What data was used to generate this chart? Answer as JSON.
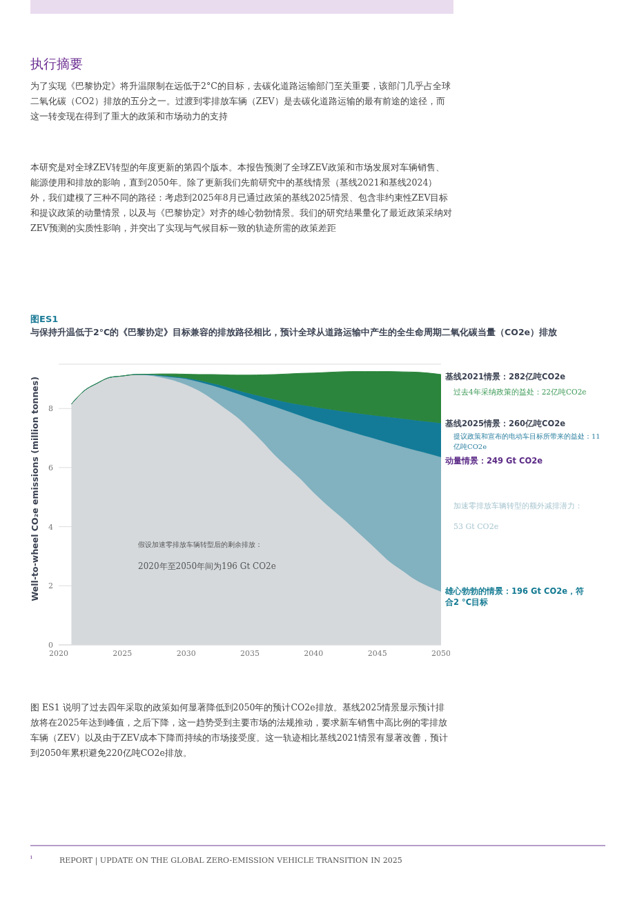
{
  "chart_data": {
    "type": "area",
    "stacked": true,
    "title": "图ES1",
    "subtitle": "与保持升温低于2°C的《巴黎协定》目标兼容的排放路径相比，预计全球从道路运输中产生的全生命周期二氧化碳当量（CO2e）排放",
    "ylabel": "Well-to-wheel CO₂e emissions (million tonnes)",
    "x": [
      2021,
      2022,
      2023,
      2024,
      2025,
      2026,
      2027,
      2028,
      2029,
      2030,
      2031,
      2032,
      2033,
      2034,
      2035,
      2036,
      2037,
      2038,
      2039,
      2040,
      2041,
      2042,
      2043,
      2044,
      2045,
      2046,
      2047,
      2048,
      2049,
      2050
    ],
    "series": [
      {
        "color": "#d5d9dc",
        "values": [
          8.15,
          8.6,
          8.85,
          9.05,
          9.1,
          9.15,
          9.12,
          9.05,
          8.95,
          8.8,
          8.6,
          8.33,
          8.02,
          7.7,
          7.3,
          6.87,
          6.4,
          6.0,
          5.6,
          5.15,
          4.75,
          4.38,
          4.0,
          3.6,
          3.2,
          2.8,
          2.5,
          2.2,
          1.98,
          1.8
        ]
      },
      {
        "color": "#82b1bf",
        "values": [
          0,
          0,
          0,
          0,
          0,
          0,
          0.02,
          0.05,
          0.1,
          0.2,
          0.3,
          0.45,
          0.63,
          0.8,
          1.05,
          1.33,
          1.65,
          1.9,
          2.15,
          2.45,
          2.72,
          2.95,
          3.2,
          3.47,
          3.75,
          4.02,
          4.2,
          4.38,
          4.49,
          4.55
        ]
      },
      {
        "color": "#137b98",
        "values": [
          0,
          0,
          0,
          0,
          0,
          0,
          0.01,
          0.02,
          0.03,
          0.03,
          0.05,
          0.07,
          0.1,
          0.12,
          0.15,
          0.2,
          0.25,
          0.3,
          0.37,
          0.45,
          0.51,
          0.59,
          0.66,
          0.73,
          0.8,
          0.88,
          0.95,
          1.02,
          1.08,
          1.15
        ]
      },
      {
        "color": "#2b853c",
        "values": [
          0,
          0,
          0,
          0,
          0,
          0,
          0.01,
          0.05,
          0.09,
          0.13,
          0.2,
          0.3,
          0.39,
          0.51,
          0.63,
          0.74,
          0.85,
          0.97,
          1.07,
          1.15,
          1.24,
          1.32,
          1.39,
          1.45,
          1.5,
          1.55,
          1.59,
          1.63,
          1.65,
          1.65
        ]
      }
    ],
    "xlim": [
      2020,
      2050
    ],
    "xticks": [
      2020,
      2025,
      2030,
      2035,
      2040,
      2045,
      2050
    ],
    "ylim": [
      0,
      9.5
    ],
    "yticks": [
      0,
      2,
      4,
      6,
      8
    ],
    "grid": "y",
    "annotations": [
      "执行摘要",
      "为了实现《巴黎协定》将升温限制在远低于2°C的目标，去碳化道路运输部门至关重要，该部门几乎占全球二氧化碳（CO2）排放的五分之一。过渡到零排放车辆（ZEV）是去碳化道路运输的最有前途的途径，而这一转变现在得到了重大的政策和市场动力的支持",
      "本研究是对全球ZEV转型的年度更新的第四个版本。本报告预测了全球ZEV政策和市场发展对车辆销售、能源使用和排放的影响，直到2050年。除了更新我们先前研究中的基线情景（基线2021和基线2024）外，我们建模了三种不同的路径：考虑到2025年8月已通过政策的基线2025情景、包含非约束性ZEV目标和提议政策的动量情景，以及与《巴黎协定》对齐的雄心勃勃情景。我们的研究结果量化了最近政策采纳对ZEV预测的实质性影响，并突出了实现与气候目标一致的轨迹所需的政策差距",
      "假设加速零排放车辆转型后的剩余排放：",
      "2020年至2050年间为196 Gt CO2e",
      "过去4年采纳政策的益处：22亿吨CO2e",
      "提议政策和宣布的电动车目标所带来的益处：11亿吨CO2e",
      "加速零排放车辆转型的额外减排潜力：",
      "53 Gt CO2e",
      "图 ES1 说明了过去四年采取的政策如何显著降低到2050年的预计CO2e排放。基线2025情景显示预计排放将在2025年达到峰值，之后下降，这一趋势受到主要市场的法规推动，要求新车销售中高比例的零排放车辆（ZEV）以及由于ZEV成本下降而持续的市场接受度。这一轨迹相比基线2021情景有显著改善，预计到2050年累积避免220亿吨CO2e排放。",
      "REPORT | UPDATE ON THE GLOBAL ZERO-EMISSION VEHICLE TRANSITION IN 2025",
      "i",
      "基线2021情景：282亿吨CO2e",
      "基线2025情景：260亿吨CO2e",
      "动量情景：249 Gt CO2e",
      "雄心勃勃的情景：196 Gt CO2e，符合2 °C目标"
    ]
  }
}
